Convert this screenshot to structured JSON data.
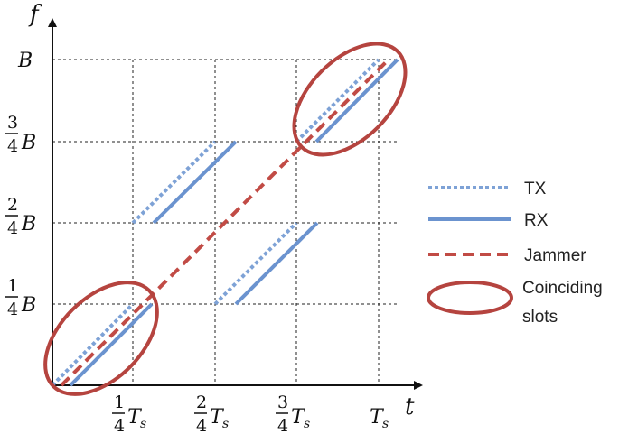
{
  "axes": {
    "x_label": "t",
    "y_label": "f"
  },
  "x_ticks": [
    {
      "num": "1",
      "den": "4",
      "sym": "T",
      "sub": "s"
    },
    {
      "num": "2",
      "den": "4",
      "sym": "T",
      "sub": "s"
    },
    {
      "num": "3",
      "den": "4",
      "sym": "T",
      "sub": "s"
    },
    {
      "num": "",
      "den": "",
      "sym": "T",
      "sub": "s"
    }
  ],
  "y_ticks": [
    {
      "num": "1",
      "den": "4",
      "sym": "B"
    },
    {
      "num": "2",
      "den": "4",
      "sym": "B"
    },
    {
      "num": "3",
      "den": "4",
      "sym": "B"
    },
    {
      "num": "",
      "den": "",
      "sym": "B"
    }
  ],
  "legend": {
    "tx": "TX",
    "rx": "RX",
    "jammer": "Jammer",
    "coinciding": [
      "Coinciding",
      "slots"
    ]
  },
  "colors": {
    "tx": "#7ea2d6",
    "rx": "#6b93cf",
    "jammer": "#c14b45",
    "ellipse": "#b5443f"
  }
}
